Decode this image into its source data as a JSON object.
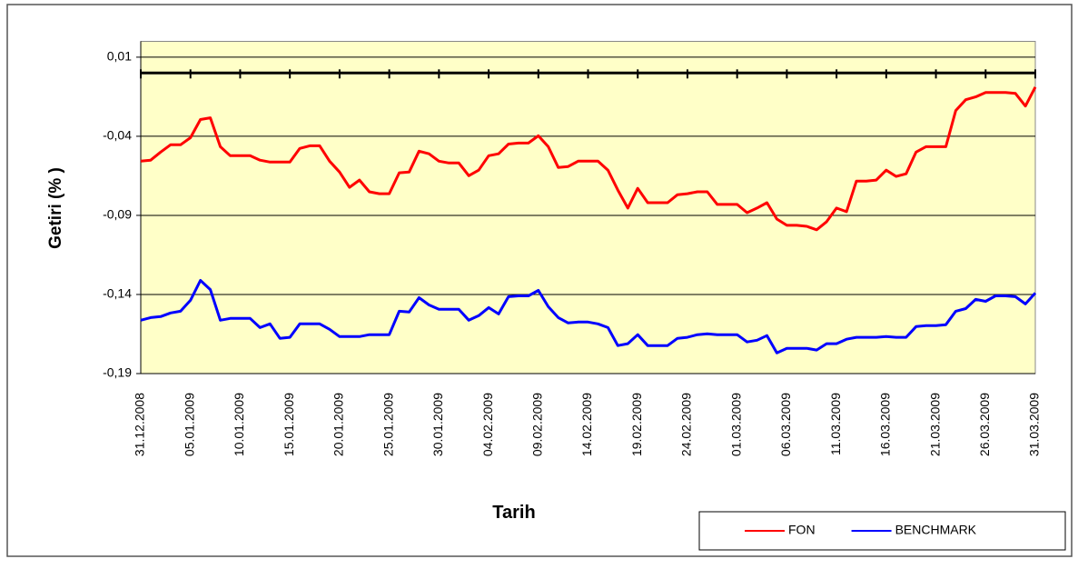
{
  "chart_data": {
    "type": "line",
    "y_label": "Getiri (% )",
    "x_label": "Tarih",
    "categories": [
      "31.12.2008",
      null,
      null,
      null,
      null,
      "05.01.2009",
      null,
      null,
      null,
      null,
      "10.01.2009",
      null,
      null,
      null,
      null,
      "15.01.2009",
      null,
      null,
      null,
      null,
      "20.01.2009",
      null,
      null,
      null,
      null,
      "25.01.2009",
      null,
      null,
      null,
      null,
      "30.01.2009",
      null,
      null,
      null,
      null,
      "04.02.2009",
      null,
      null,
      null,
      null,
      "09.02.2009",
      null,
      null,
      null,
      null,
      "14.02.2009",
      null,
      null,
      null,
      null,
      "19.02.2009",
      null,
      null,
      null,
      null,
      "24.02.2009",
      null,
      null,
      null,
      null,
      "01.03.2009",
      null,
      null,
      null,
      null,
      "06.03.2009",
      null,
      null,
      null,
      null,
      "11.03.2009",
      null,
      null,
      null,
      null,
      "16.03.2009",
      null,
      null,
      null,
      null,
      "21.03.2009",
      null,
      null,
      null,
      null,
      "26.03.2009",
      null,
      null,
      null,
      null,
      "31.03.2009"
    ],
    "series": [
      {
        "name": "FON",
        "color": "#ff0000",
        "values": [
          -0.0557,
          -0.0551,
          -0.05,
          -0.0454,
          -0.0454,
          -0.0409,
          -0.0294,
          -0.0283,
          -0.0466,
          -0.0523,
          -0.0523,
          -0.0523,
          -0.0551,
          -0.0563,
          -0.0563,
          -0.0563,
          -0.0477,
          -0.046,
          -0.046,
          -0.0557,
          -0.0626,
          -0.0723,
          -0.0677,
          -0.0751,
          -0.0763,
          -0.0763,
          -0.0631,
          -0.0626,
          -0.0494,
          -0.0511,
          -0.0557,
          -0.0569,
          -0.0569,
          -0.0649,
          -0.0614,
          -0.0523,
          -0.0511,
          -0.0449,
          -0.0443,
          -0.0443,
          -0.0397,
          -0.0466,
          -0.0597,
          -0.0591,
          -0.0557,
          -0.0557,
          -0.0557,
          -0.0614,
          -0.074,
          -0.0854,
          -0.0729,
          -0.082,
          -0.082,
          -0.082,
          -0.0769,
          -0.0763,
          -0.0751,
          -0.0751,
          -0.0831,
          -0.0831,
          -0.0831,
          -0.0883,
          -0.0854,
          -0.082,
          -0.0923,
          -0.0963,
          -0.0963,
          -0.0969,
          -0.0991,
          -0.094,
          -0.0854,
          -0.0877,
          -0.0683,
          -0.0683,
          -0.0677,
          -0.0614,
          -0.0654,
          -0.0637,
          -0.05,
          -0.0466,
          -0.0466,
          -0.0466,
          -0.0237,
          -0.0169,
          -0.0151,
          -0.0123,
          -0.0123,
          -0.0123,
          -0.0129,
          -0.0209,
          -0.0089
        ]
      },
      {
        "name": "BENCHMARK",
        "color": "#0000ff",
        "values": [
          -0.1563,
          -0.1546,
          -0.154,
          -0.1517,
          -0.1506,
          -0.1437,
          -0.1311,
          -0.1369,
          -0.1563,
          -0.1551,
          -0.1551,
          -0.1551,
          -0.1609,
          -0.1586,
          -0.1677,
          -0.1671,
          -0.1586,
          -0.1586,
          -0.1586,
          -0.162,
          -0.1666,
          -0.1666,
          -0.1666,
          -0.1654,
          -0.1654,
          -0.1654,
          -0.1506,
          -0.1511,
          -0.142,
          -0.1466,
          -0.1494,
          -0.1494,
          -0.1494,
          -0.1563,
          -0.1534,
          -0.1483,
          -0.1523,
          -0.1414,
          -0.1409,
          -0.1409,
          -0.1374,
          -0.1477,
          -0.1546,
          -0.158,
          -0.1574,
          -0.1574,
          -0.1586,
          -0.1609,
          -0.1723,
          -0.1711,
          -0.1654,
          -0.1723,
          -0.1723,
          -0.1723,
          -0.1677,
          -0.1671,
          -0.1654,
          -0.1649,
          -0.1654,
          -0.1654,
          -0.1654,
          -0.17,
          -0.1689,
          -0.166,
          -0.1769,
          -0.174,
          -0.174,
          -0.174,
          -0.1751,
          -0.1711,
          -0.1711,
          -0.1683,
          -0.1671,
          -0.1671,
          -0.1671,
          -0.1666,
          -0.1671,
          -0.1671,
          -0.1603,
          -0.1597,
          -0.1597,
          -0.1591,
          -0.1506,
          -0.1489,
          -0.1431,
          -0.1443,
          -0.1409,
          -0.1409,
          -0.1414,
          -0.146,
          -0.1391
        ]
      }
    ],
    "ylim": [
      -0.19,
      0.02
    ],
    "yticks": [
      {
        "value": 0.01,
        "label": "0,01"
      },
      {
        "value": -0.04,
        "label": "-0,04"
      },
      {
        "value": -0.09,
        "label": "-0,09"
      },
      {
        "value": -0.14,
        "label": "-0,14"
      },
      {
        "value": -0.19,
        "label": "-0,19"
      }
    ],
    "grid": true,
    "legend": "bottom-right",
    "plot_background": "#ffffc8"
  }
}
